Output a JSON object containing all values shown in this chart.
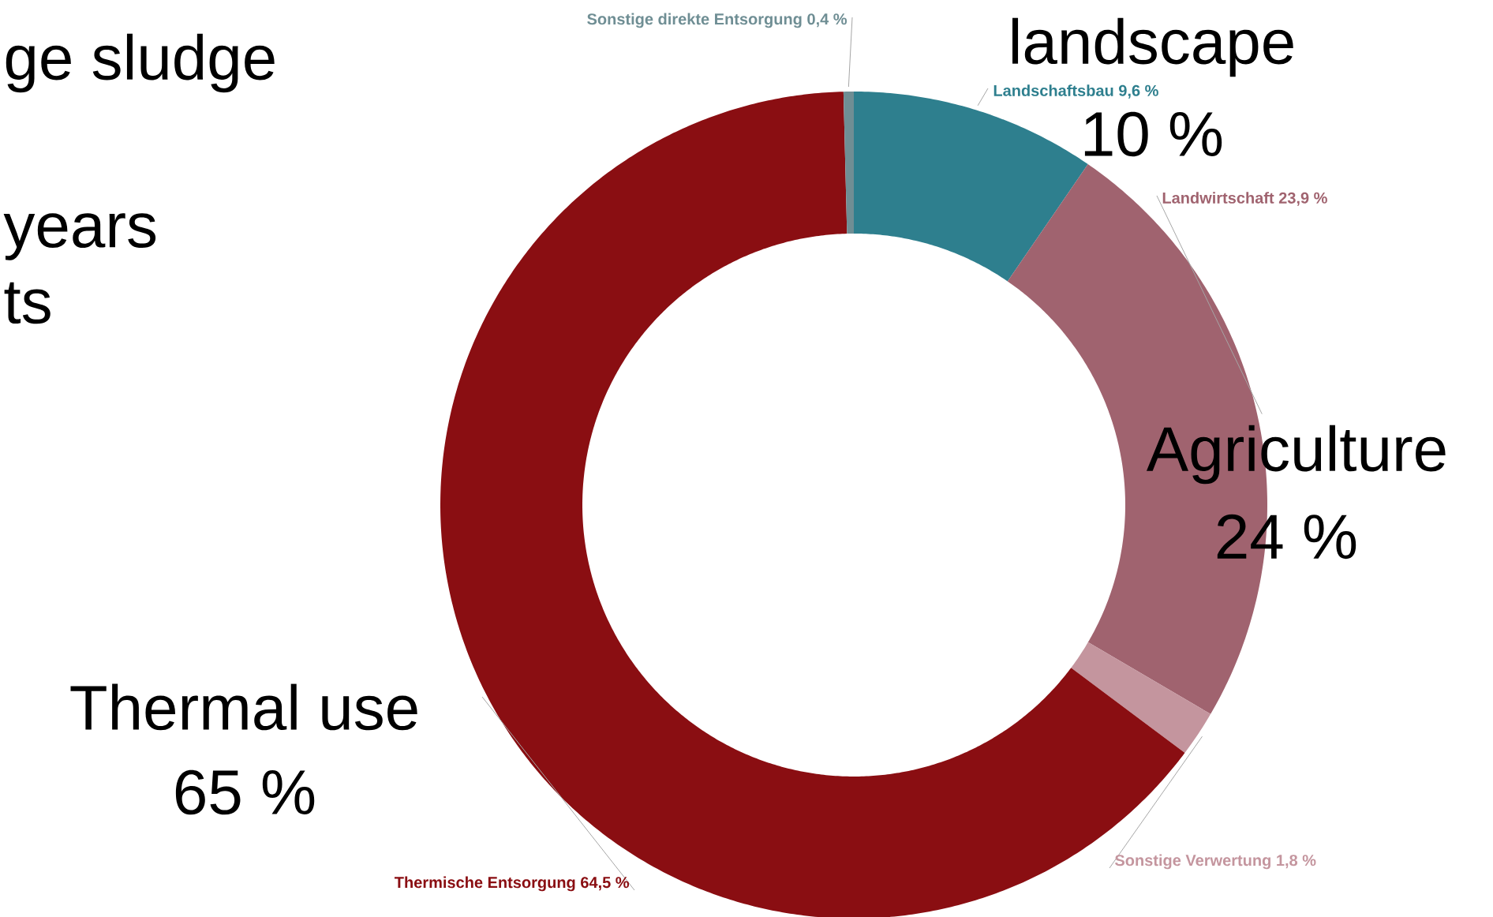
{
  "chart_data": {
    "type": "donut",
    "categories": [
      "Landschaftsbau",
      "Landwirtschaft",
      "Sonstige Verwertung",
      "Thermische Entsorgung",
      "Sonstige direkte Entsorgung"
    ],
    "values": [
      9.6,
      23.9,
      1.8,
      64.5,
      0.4
    ],
    "value_labels": [
      "9,6 %",
      "23,9 %",
      "1,8 %",
      "64,5 %",
      "0,4 %"
    ],
    "colors": [
      "#2e7f8e",
      "#a0636f",
      "#c4959e",
      "#8a0e12",
      "#6f8e94"
    ],
    "annotations": [
      "ge sludge",
      "years",
      "ts",
      "landscape",
      "10 %",
      "Agriculture",
      "24 %",
      "Thermal use",
      "65 %"
    ]
  }
}
